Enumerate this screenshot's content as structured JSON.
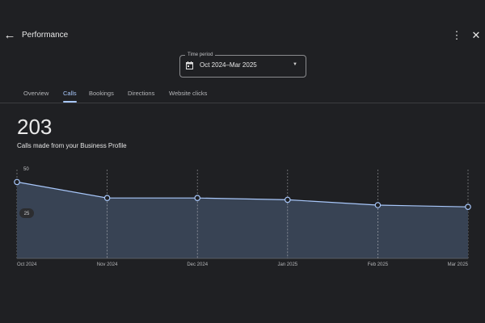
{
  "header": {
    "title": "Performance",
    "back_icon": "arrow-left-icon",
    "more_icon": "more-vert-icon",
    "close_icon": "close-icon"
  },
  "time_period": {
    "label": "Time period",
    "value": "Oct 2024–Mar 2025",
    "icon": "calendar-icon"
  },
  "tabs": [
    {
      "label": "Overview",
      "active": false
    },
    {
      "label": "Calls",
      "active": true
    },
    {
      "label": "Bookings",
      "active": false
    },
    {
      "label": "Directions",
      "active": false
    },
    {
      "label": "Website clicks",
      "active": false
    }
  ],
  "metric": {
    "value": "203",
    "description": "Calls made from your Business Profile"
  },
  "colors": {
    "accent": "#a8c7fa",
    "line": "#a8c7fa",
    "area": "#3a4657",
    "background": "#1f2023"
  },
  "chart_data": {
    "type": "area",
    "x": [
      "Oct 2024",
      "Nov 2024",
      "Dec 2024",
      "Jan 2025",
      "Feb 2025",
      "Mar 2025"
    ],
    "values": [
      43,
      34,
      34,
      33,
      30,
      29
    ],
    "ytick_labels": [
      "50",
      "25"
    ],
    "ylim": [
      0,
      50
    ],
    "title": "",
    "xlabel": "",
    "ylabel": "",
    "grid": "vertical-dashed"
  }
}
